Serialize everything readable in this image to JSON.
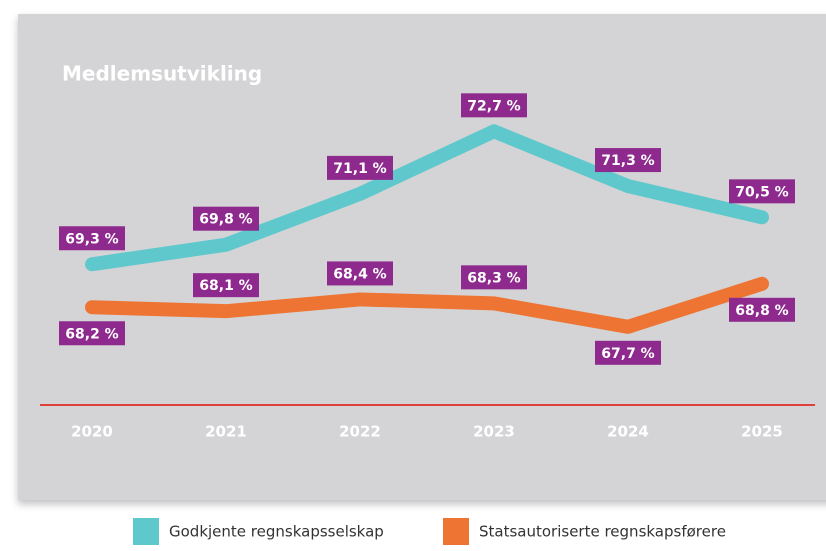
{
  "chart_data": {
    "type": "line",
    "title": "Medlemsutvikling",
    "categories": [
      "2020",
      "2021",
      "2022",
      "2023",
      "2024",
      "2025"
    ],
    "series": [
      {
        "name": "Godkjente regnskapsselskap",
        "color": "#5ec8cc",
        "values": [
          69.3,
          69.8,
          71.1,
          72.7,
          71.3,
          70.5
        ],
        "value_labels": [
          "69,3 %",
          "69,8 %",
          "71,1 %",
          "72,7 %",
          "71,3 %",
          "70,5 %"
        ]
      },
      {
        "name": "Statsautoriserte regnskapsførere",
        "color": "#ee7433",
        "values": [
          68.2,
          68.1,
          68.4,
          68.3,
          67.7,
          68.8
        ],
        "value_labels": [
          "68,2 %",
          "68,1 %",
          "68,4 %",
          "68,3 %",
          "67,7 %",
          "68,8 %"
        ]
      }
    ],
    "ylim": [
      65.7,
      74
    ],
    "label_color": "#8e2a8e"
  }
}
